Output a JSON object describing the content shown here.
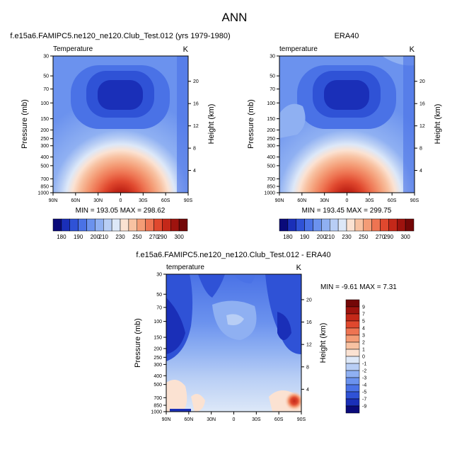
{
  "page_title": "ANN",
  "colors": {
    "bg": "#ffffff",
    "temp_palette": [
      "#0a0a7a",
      "#1a2fb8",
      "#2f52d6",
      "#4a72e6",
      "#6b92ee",
      "#8fb0f2",
      "#b8cef5",
      "#dde8f8",
      "#fbe2d2",
      "#f8c2a2",
      "#f49c76",
      "#ee7452",
      "#e0482e",
      "#c42819",
      "#9e130e",
      "#740707"
    ],
    "diff_palette": [
      "#0a0a7a",
      "#1a2fb8",
      "#2f52d6",
      "#4a72e6",
      "#6b92ee",
      "#8fb0f2",
      "#b8cef5",
      "#dde8f8",
      "#fbe2d2",
      "#f8c2a2",
      "#f49c76",
      "#ee7452",
      "#e0482e",
      "#c42819",
      "#9e130e",
      "#740707"
    ]
  },
  "chart_data": [
    {
      "type": "heatmap",
      "title": "f.e15a6.FAMIPC5.ne120_ne120.Club_Test.012 (yrs 1979-1980)",
      "left_label": "Temperature",
      "right_label": "K",
      "ylabel": "Pressure (mb)",
      "ylabel_right": "Height (km)",
      "xticks": [
        "90N",
        "60N",
        "30N",
        "0",
        "30S",
        "60S",
        "90S"
      ],
      "yticks": [
        "30",
        "50",
        "70",
        "100",
        "150",
        "200",
        "250",
        "300",
        "400",
        "500",
        "700",
        "850",
        "1000"
      ],
      "height_ticks": [
        "20",
        "16",
        "12",
        "8",
        "4"
      ],
      "stats": "MIN = 193.05  MAX = 298.62",
      "min": 193.05,
      "max": 298.62,
      "colorbar_labels": [
        "180",
        "190",
        "200",
        "210",
        "230",
        "250",
        "270",
        "290",
        "300"
      ],
      "x": [
        -90,
        90
      ],
      "y": [
        30,
        1000
      ]
    },
    {
      "type": "heatmap",
      "title": "ERA40",
      "left_label": "temperature",
      "right_label": "K",
      "ylabel": "Pressure (mb)",
      "ylabel_right": "Height (km)",
      "xticks": [
        "90N",
        "60N",
        "30N",
        "0",
        "30S",
        "60S",
        "90S"
      ],
      "yticks": [
        "30",
        "50",
        "70",
        "100",
        "150",
        "200",
        "250",
        "300",
        "400",
        "500",
        "700",
        "850",
        "1000"
      ],
      "height_ticks": [
        "20",
        "16",
        "12",
        "8",
        "4"
      ],
      "stats": "MIN = 193.45  MAX = 299.75",
      "min": 193.45,
      "max": 299.75,
      "colorbar_labels": [
        "180",
        "190",
        "200",
        "210",
        "230",
        "250",
        "270",
        "290",
        "300"
      ]
    },
    {
      "type": "heatmap",
      "title": "f.e15a6.FAMIPC5.ne120_ne120.Club_Test.012 - ERA40",
      "left_label": "temperature",
      "right_label": "K",
      "ylabel": "Pressure (mb)",
      "ylabel_right": "Height (km)",
      "xticks": [
        "90N",
        "60N",
        "30N",
        "0",
        "30S",
        "60S",
        "90S"
      ],
      "yticks": [
        "30",
        "50",
        "70",
        "100",
        "150",
        "200",
        "250",
        "300",
        "400",
        "500",
        "700",
        "850",
        "1000"
      ],
      "height_ticks": [
        "20",
        "16",
        "12",
        "8",
        "4"
      ],
      "stats": "MIN =  -9.61  MAX =   7.31",
      "min": -9.61,
      "max": 7.31,
      "colorbar_labels": [
        "9",
        "7",
        "5",
        "4",
        "3",
        "2",
        "1",
        "0",
        "-1",
        "-2",
        "-3",
        "-4",
        "-5",
        "-7",
        "-9"
      ]
    }
  ]
}
